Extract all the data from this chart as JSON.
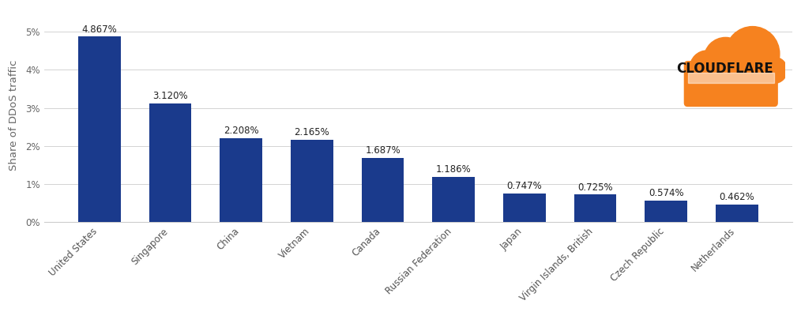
{
  "categories": [
    "United States",
    "Singapore",
    "China",
    "Vietnam",
    "Canada",
    "Russian Federation",
    "Japan",
    "Virgin Islands, British",
    "Czech Republic",
    "Netherlands"
  ],
  "values": [
    4.867,
    3.12,
    2.208,
    2.165,
    1.687,
    1.186,
    0.747,
    0.725,
    0.574,
    0.462
  ],
  "labels": [
    "4.867%",
    "3.120%",
    "2.208%",
    "2.165%",
    "1.687%",
    "1.186%",
    "0.747%",
    "0.725%",
    "0.574%",
    "0.462%"
  ],
  "bar_color": "#1a3a8c",
  "background_color": "#ffffff",
  "plot_bg_color": "#ffffff",
  "ylabel": "Share of DDoS traffic",
  "ylim": [
    0,
    5.6
  ],
  "yticks": [
    0,
    1,
    2,
    3,
    4,
    5
  ],
  "ytick_labels": [
    "0%",
    "1%",
    "2%",
    "3%",
    "4%",
    "5%"
  ],
  "label_fontsize": 8.5,
  "tick_fontsize": 8.5,
  "ylabel_fontsize": 9.5,
  "grid_color": "#cccccc",
  "cloudflare_text": "CLOUDFLARE",
  "cloudflare_text_color": "#111111",
  "cloudflare_fontsize": 12,
  "cloud_color": "#f6821f",
  "bar_width": 0.6
}
